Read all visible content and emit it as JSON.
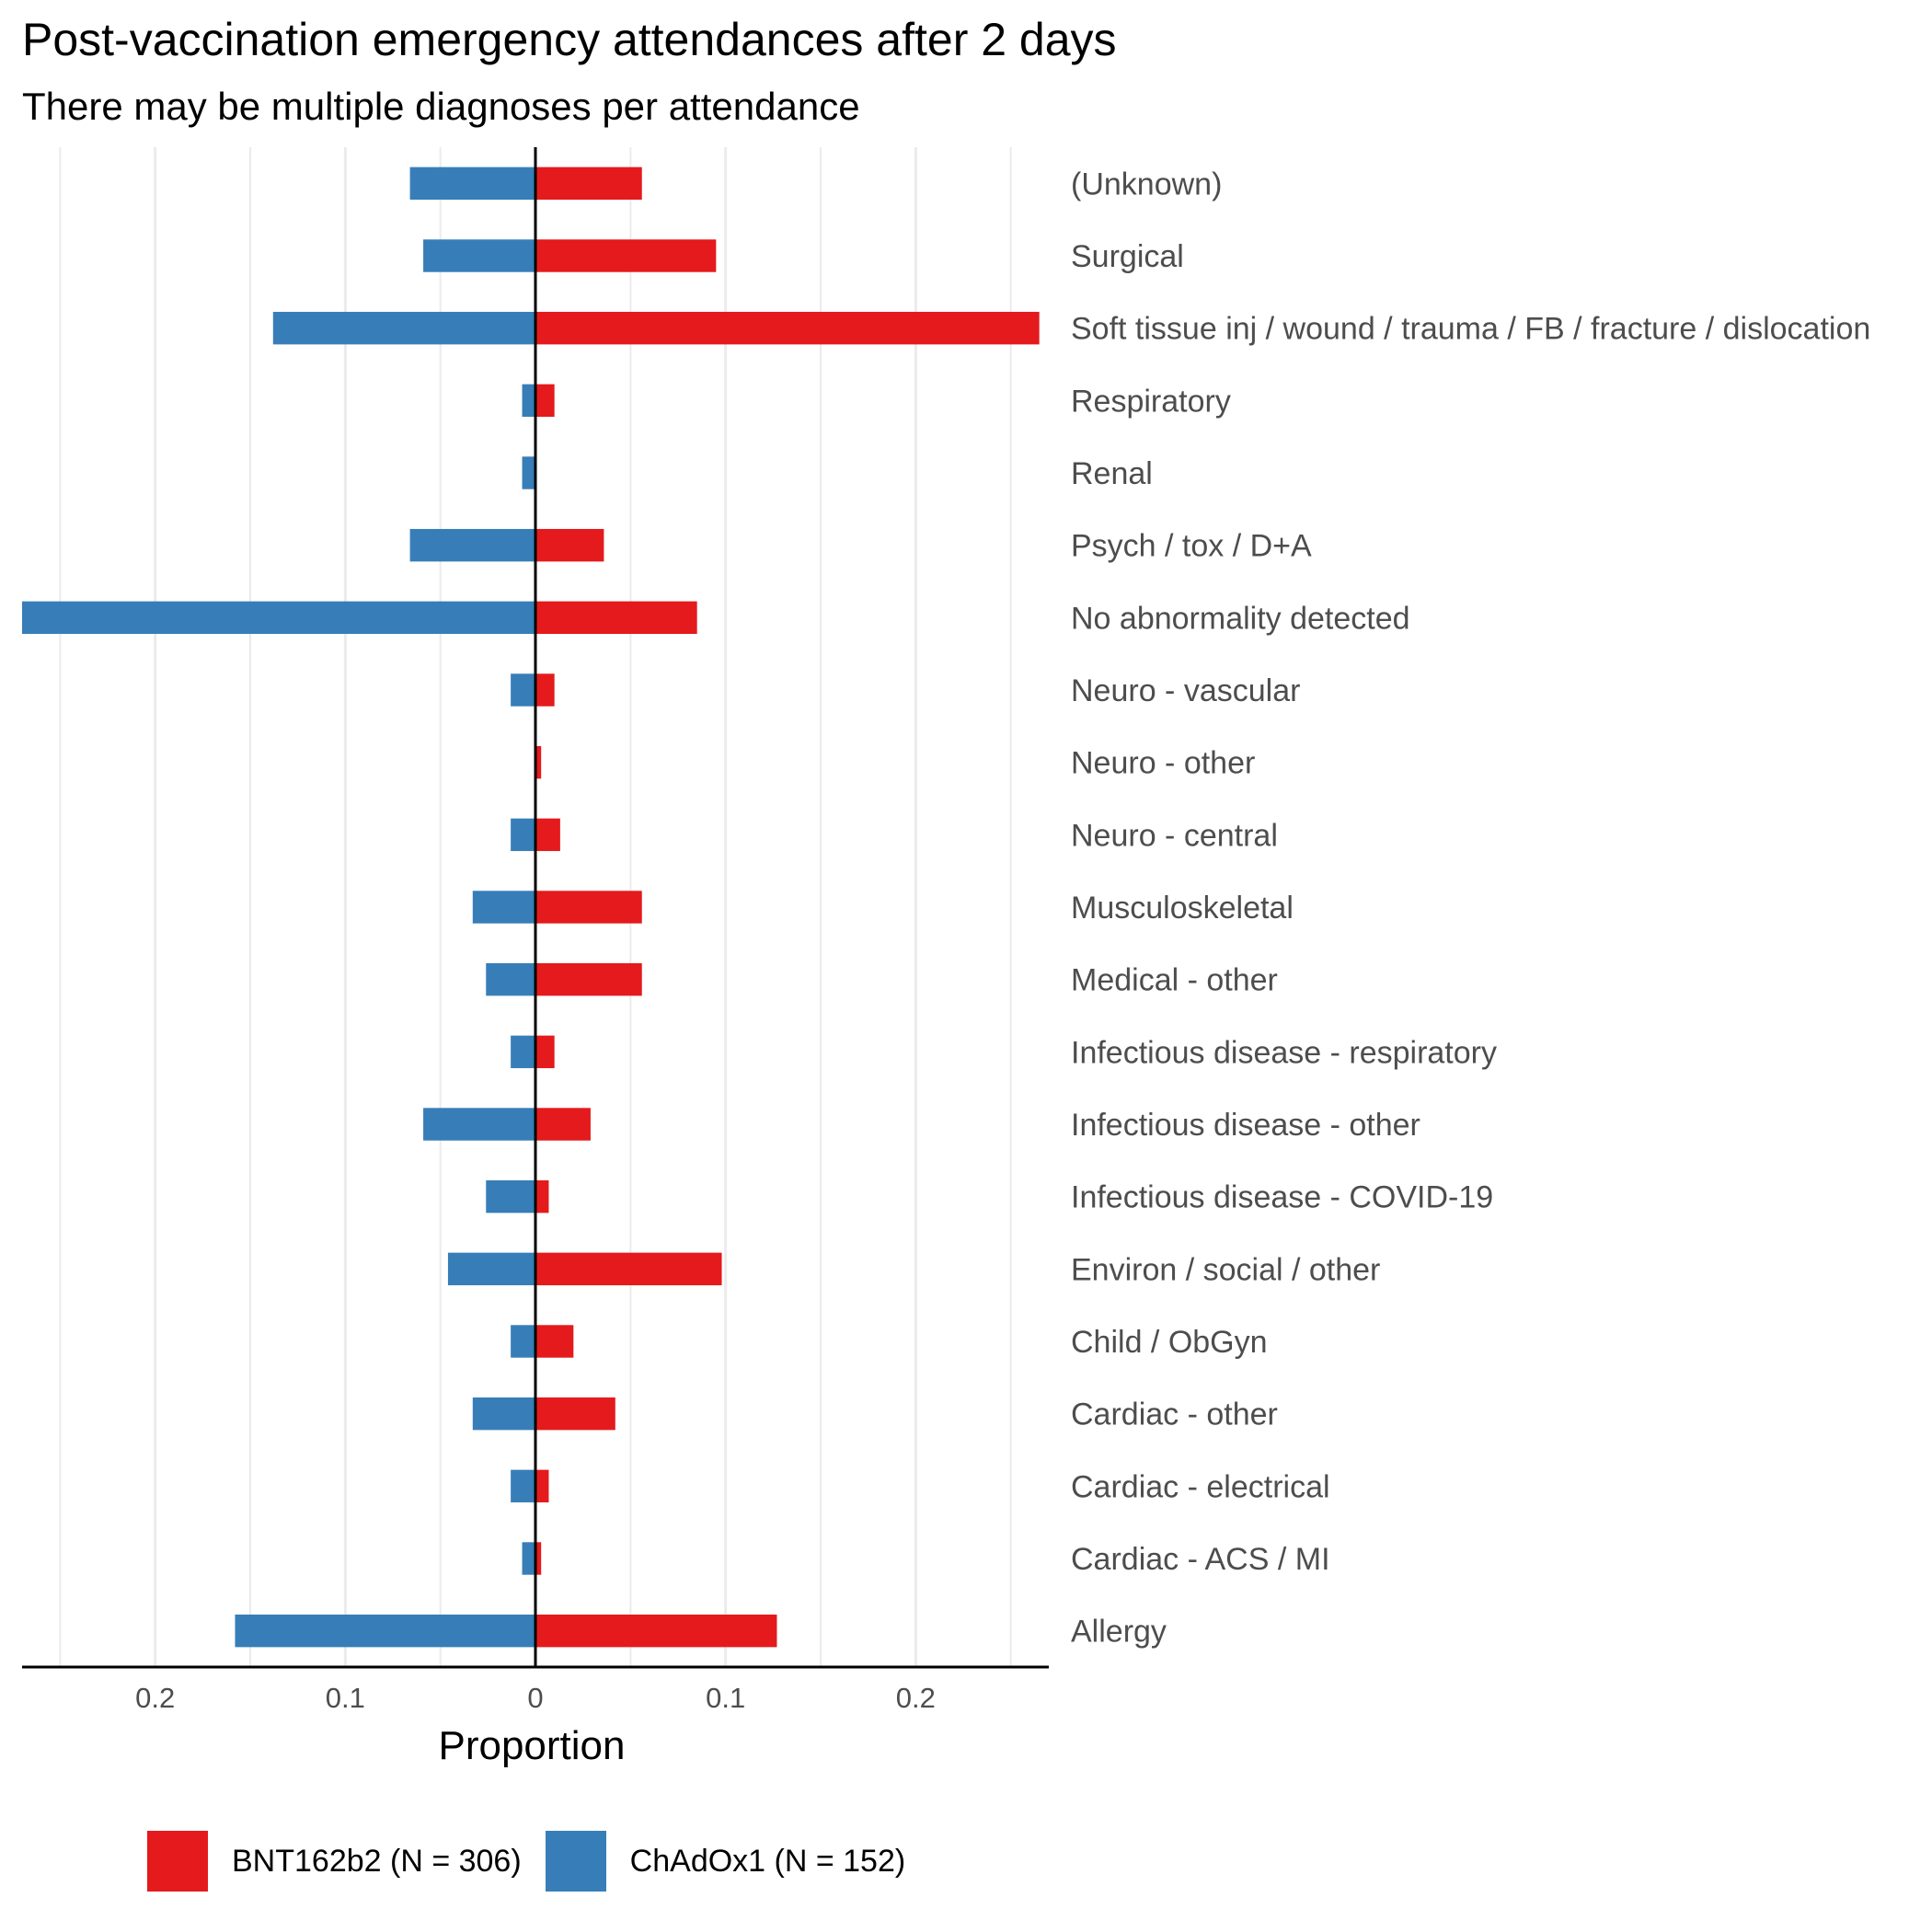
{
  "chart_data": {
    "type": "bar",
    "orientation": "horizontal-diverging",
    "title": "Post-vaccination emergency attendances after 2 days",
    "subtitle": "There may be multiple diagnoses per attendance",
    "xlabel": "Proportion",
    "ylabel": "",
    "xlim": [
      -0.27,
      0.27
    ],
    "x_tick_values": [
      -0.2,
      -0.1,
      0,
      0.1,
      0.2
    ],
    "x_tick_labels": [
      "0.2",
      "0.1",
      "0",
      "0.1",
      "0.2"
    ],
    "grid": true,
    "legend_position": "bottom",
    "categories": [
      "(Unknown)",
      "Surgical",
      "Soft tissue inj / wound / trauma / FB / fracture / dislocation",
      "Respiratory",
      "Renal",
      "Psych / tox / D+A",
      "No abnormality detected",
      "Neuro - vascular",
      "Neuro - other",
      "Neuro - central",
      "Musculoskeletal",
      "Medical - other",
      "Infectious disease - respiratory",
      "Infectious disease - other",
      "Infectious disease - COVID-19",
      "Environ / social / other",
      "Child / ObGyn",
      "Cardiac - other",
      "Cardiac - electrical",
      "Cardiac - ACS / MI",
      "Allergy"
    ],
    "series": [
      {
        "name": "BNT162b2 (N = 306)",
        "color": "#e41a1c",
        "direction": "right",
        "values": [
          0.056,
          0.095,
          0.265,
          0.01,
          0.0,
          0.036,
          0.085,
          0.01,
          0.003,
          0.013,
          0.056,
          0.056,
          0.01,
          0.029,
          0.007,
          0.098,
          0.02,
          0.042,
          0.007,
          0.003,
          0.127
        ]
      },
      {
        "name": "ChAdOx1 (N = 152)",
        "color": "#377eb8",
        "direction": "left",
        "values": [
          0.066,
          0.059,
          0.138,
          0.007,
          0.007,
          0.066,
          0.27,
          0.013,
          0.0,
          0.013,
          0.033,
          0.026,
          0.013,
          0.059,
          0.026,
          0.046,
          0.013,
          0.033,
          0.013,
          0.007,
          0.158
        ]
      }
    ]
  }
}
